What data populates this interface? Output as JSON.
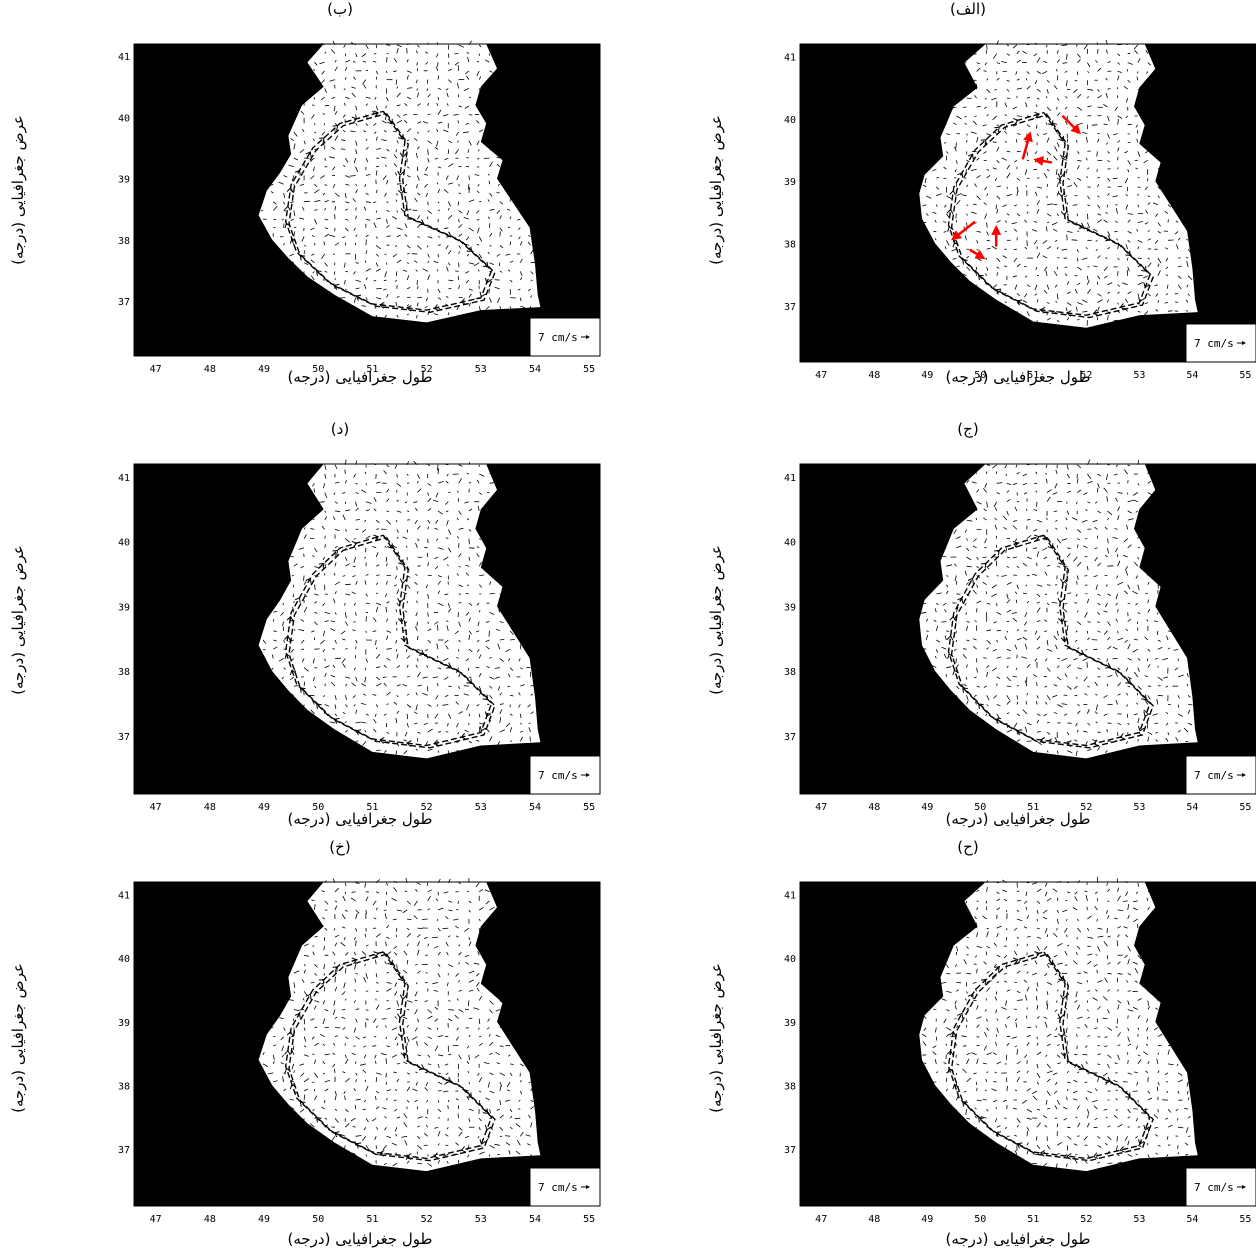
{
  "axis": {
    "x_label": "طول جغرافیایی (درجه)",
    "y_label": "عرض جغرافیایی (درجه)",
    "x_ticks": [
      "47",
      "48",
      "49",
      "50",
      "51",
      "52",
      "53",
      "54",
      "55"
    ],
    "y_ticks": [
      "41",
      "40",
      "39",
      "38",
      "37"
    ],
    "lon_range": [
      46.6,
      55.2
    ],
    "lat_range": [
      36.1,
      41.2
    ]
  },
  "legend": {
    "scale_label": "7 cm/s"
  },
  "colors": {
    "land": "#000000",
    "sea": "#ffffff",
    "vector": "#000000",
    "highlight": "#ff0000"
  },
  "panels": [
    {
      "id": "alef",
      "title": "(الف)"
    },
    {
      "id": "be",
      "title": "(ب)"
    },
    {
      "id": "jim",
      "title": "(ج)"
    },
    {
      "id": "dal",
      "title": "(د)"
    },
    {
      "id": "he",
      "title": "(ح)"
    },
    {
      "id": "khe",
      "title": "(خ)"
    }
  ]
}
